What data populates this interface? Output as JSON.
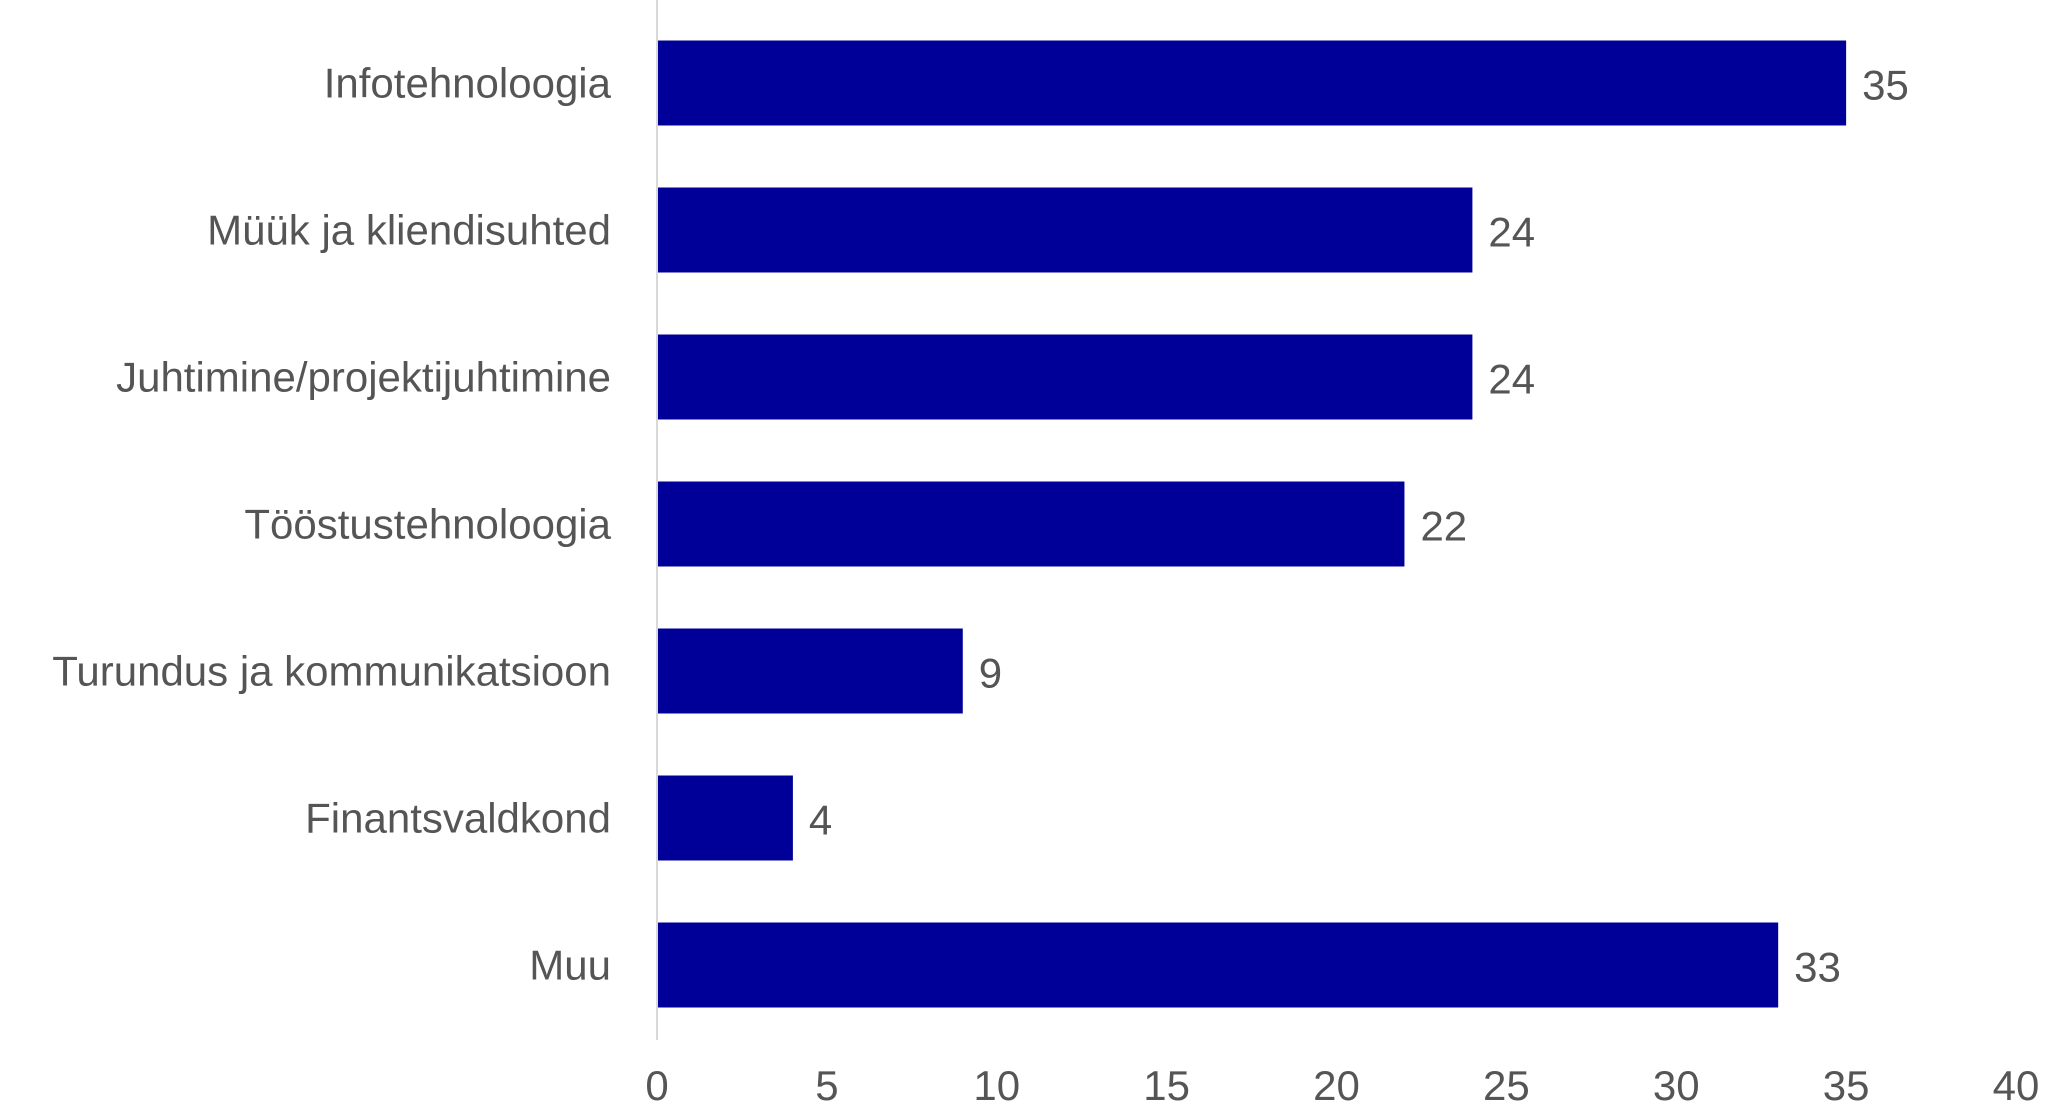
{
  "chart_data": {
    "type": "bar",
    "orientation": "horizontal",
    "title": "",
    "xlabel": "",
    "ylabel": "",
    "categories": [
      "Infotehnoloogia",
      "Müük ja kliendisuhted",
      "Juhtimine/projektijuhtimine",
      "Tööstustehnoloogia",
      "Turundus ja kommunikatsioon",
      "Finantsvaldkond",
      "Muu"
    ],
    "values": [
      35,
      24,
      24,
      22,
      9,
      4,
      33
    ],
    "data_labels": [
      "35",
      "24",
      "24",
      "22",
      "9",
      "4",
      "33"
    ],
    "xlim": [
      0,
      40
    ],
    "xticks": [
      0,
      5,
      10,
      15,
      20,
      25,
      30,
      35,
      40
    ],
    "grid": false,
    "legend": "none",
    "bar_color": "#000099"
  }
}
